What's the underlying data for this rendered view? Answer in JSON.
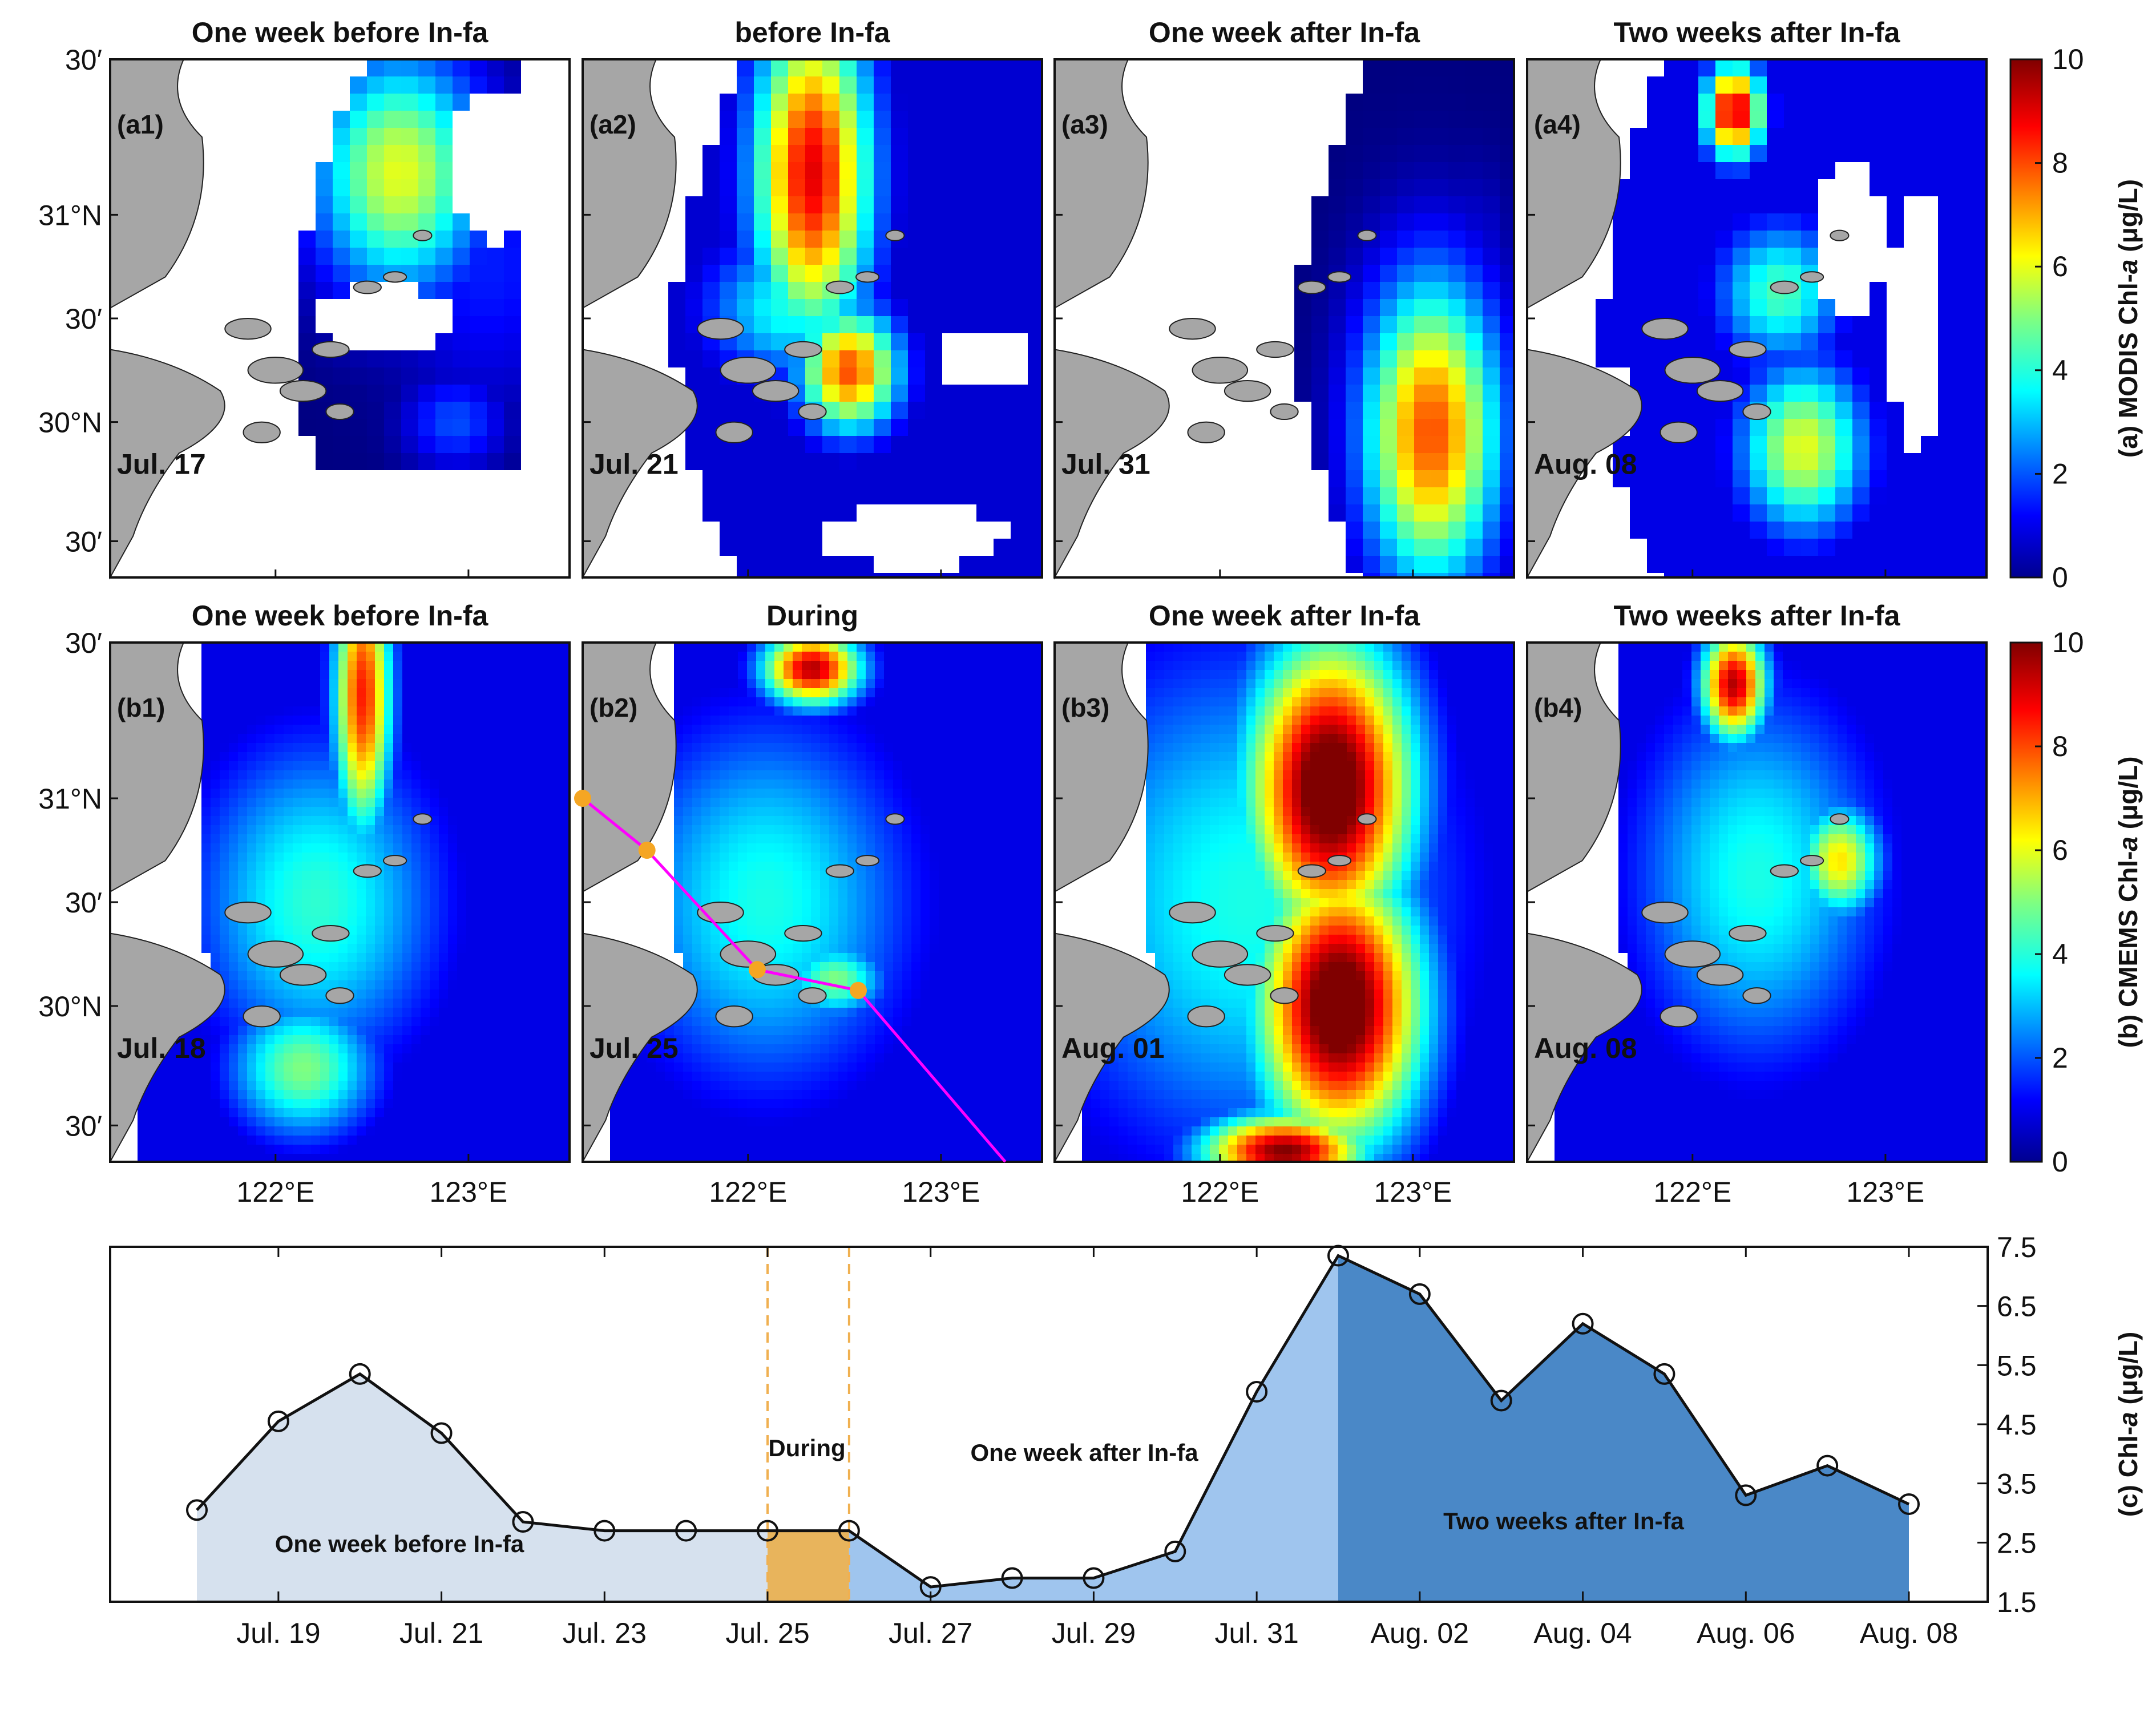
{
  "colorbar": {
    "min": 0,
    "max": 10,
    "ticks": [
      "0",
      "2",
      "4",
      "6",
      "8",
      "10"
    ]
  },
  "row_a": {
    "colorbar_label": "(a) MODIS Chl-",
    "colorbar_label_italic": "a",
    "colorbar_label_unit": " (μg/L)",
    "panels": [
      {
        "title": "One week before In-fa",
        "label": "(a1)",
        "date": "Jul. 17"
      },
      {
        "title": "before In-fa",
        "label": "(a2)",
        "date": "Jul. 21"
      },
      {
        "title": "One week after In-fa",
        "label": "(a3)",
        "date": "Jul. 31"
      },
      {
        "title": "Two weeks after In-fa",
        "label": "(a4)",
        "date": "Aug. 08"
      }
    ]
  },
  "row_b": {
    "colorbar_label": "(b) CMEMS Chl-",
    "colorbar_label_italic": "a",
    "colorbar_label_unit": " (μg/L)",
    "panels": [
      {
        "title": "One week before In-fa",
        "label": "(b1)",
        "date": "Jul. 18"
      },
      {
        "title": "During",
        "label": "(b2)",
        "date": "Jul. 25"
      },
      {
        "title": "One week after In-fa",
        "label": "(b3)",
        "date": "Aug. 01"
      },
      {
        "title": "Two weeks after In-fa",
        "label": "(b4)",
        "date": "Aug. 08"
      }
    ]
  },
  "map_axes": {
    "lat_ticks": [
      "30′",
      "31°N",
      "30′",
      "30°N",
      "30′"
    ],
    "lon_ticks": [
      "122°E",
      "123°E"
    ]
  },
  "colors": {
    "land": "#a6a6a6",
    "track": "#ff00ff",
    "track_point": "#f5a623",
    "fill_before": "#d6e1ee",
    "fill_during": "#e8b45c",
    "fill_after1": "#9fc5ee",
    "fill_after2": "#4a88c7",
    "dashed": "#f0b050"
  },
  "chart_data": {
    "type": "area",
    "title": "",
    "xlabel": "",
    "ylabel": "(c) Chl-",
    "ylabel_italic": "a",
    "ylabel_unit": " (μg/L)",
    "ylim": [
      1.5,
      7.5
    ],
    "yticks": [
      "1.5",
      "2.5",
      "3.5",
      "4.5",
      "5.5",
      "6.5",
      "7.5"
    ],
    "dates": [
      "Jul. 18",
      "Jul. 19",
      "Jul. 20",
      "Jul. 21",
      "Jul. 22",
      "Jul. 23",
      "Jul. 24",
      "Jul. 25",
      "Jul. 26",
      "Jul. 27",
      "Jul. 28",
      "Jul. 29",
      "Jul. 30",
      "Jul. 31",
      "Aug. 01",
      "Aug. 02",
      "Aug. 03",
      "Aug. 04",
      "Aug. 05",
      "Aug. 06",
      "Aug. 07",
      "Aug. 08"
    ],
    "xtick_labels": [
      "Jul. 19",
      "Jul. 21",
      "Jul. 23",
      "Jul. 25",
      "Jul. 27",
      "Jul. 29",
      "Jul. 31",
      "Aug. 02",
      "Aug. 04",
      "Aug. 06",
      "Aug. 08"
    ],
    "values": [
      3.05,
      4.55,
      5.35,
      4.35,
      2.85,
      2.7,
      2.7,
      2.7,
      2.7,
      1.75,
      1.9,
      1.9,
      2.35,
      5.05,
      7.35,
      6.7,
      4.9,
      6.2,
      5.35,
      3.3,
      3.8,
      3.15
    ],
    "periods": [
      {
        "name": "One week before In-fa",
        "start": 0,
        "end": 7
      },
      {
        "name": "During",
        "start": 7,
        "end": 8
      },
      {
        "name": "One week after In-fa",
        "start": 8,
        "end": 14
      },
      {
        "name": "Two weeks after In-fa",
        "start": 14,
        "end": 21
      }
    ],
    "annotations": [
      "One week before In-fa",
      "During",
      "One week after In-fa",
      "Two weeks after In-fa"
    ]
  }
}
